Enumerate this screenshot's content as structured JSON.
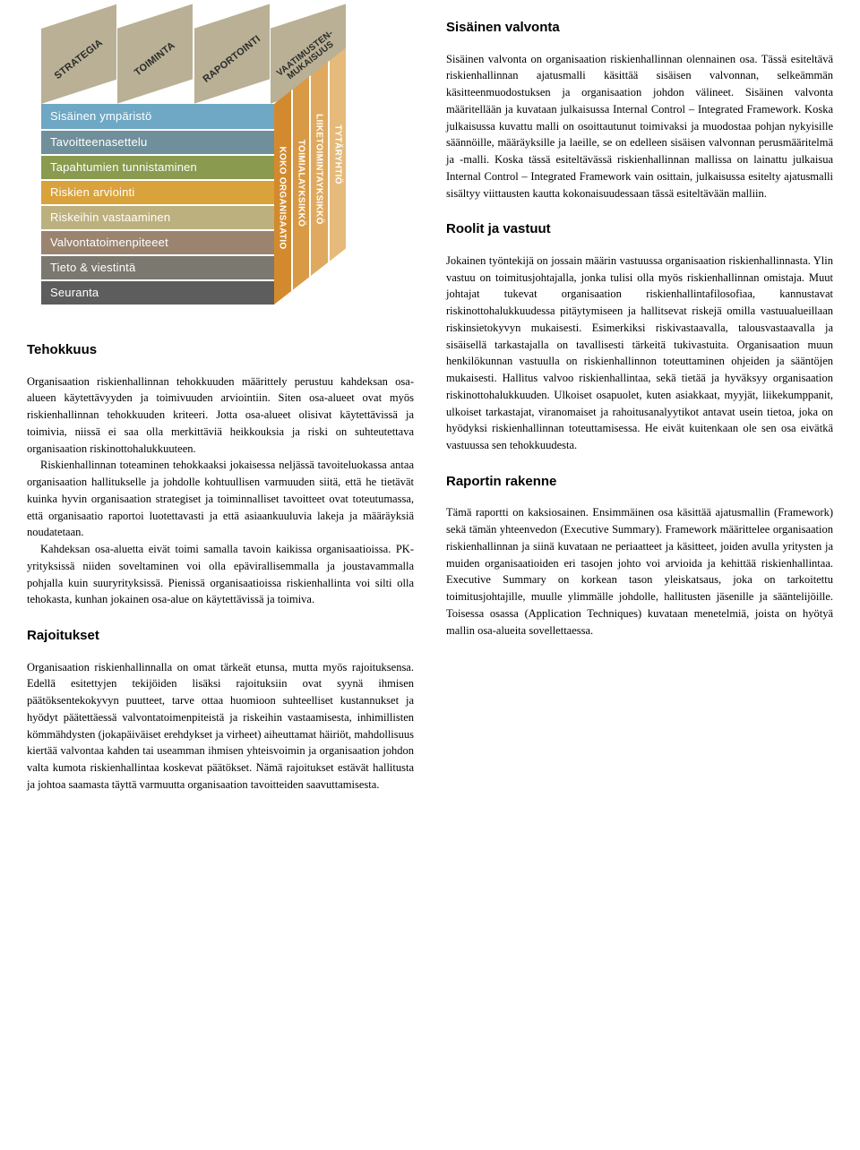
{
  "cube": {
    "top_labels": [
      "STRATEGIA",
      "TOIMINTA",
      "RAPORTOINTI",
      "VAATIMUSTEN-\nMUKAISUUS"
    ],
    "top_colors": [
      "#b9b095",
      "#b9b095",
      "#b9b095",
      "#b9b095"
    ],
    "front_rows": [
      {
        "label": "Sisäinen ympäristö",
        "color": "#6ea8c4"
      },
      {
        "label": "Tavoitteenasettelu",
        "color": "#6f8f9a"
      },
      {
        "label": "Tapahtumien tunnistaminen",
        "color": "#8a9a4e"
      },
      {
        "label": "Riskien arviointi",
        "color": "#d9a23a"
      },
      {
        "label": "Riskeihin vastaaminen",
        "color": "#bdb07f"
      },
      {
        "label": "Valvontatoimenpiteeet",
        "color": "#9a8470"
      },
      {
        "label": "Tieto & viestintä",
        "color": "#7a786f"
      },
      {
        "label": "Seuranta",
        "color": "#5d5d5d"
      }
    ],
    "side_labels": [
      "KOKO ORGANISAATIO",
      "TOIMIALAYKSIKKÖ",
      "LIIKETOIMINTAYKSIKKÖ",
      "TYTÄRYHTIÖ"
    ],
    "side_colors": [
      "#d38a2e",
      "#d99a45",
      "#dfaa5f",
      "#e5ba7a"
    ]
  },
  "left": {
    "tehokkuus_heading": "Tehokkuus",
    "tehokkuus_p1": "Organisaation riskienhallinnan tehokkuuden määrittely perustuu kahdeksan osa-alueen käytettävyyden ja toimivuuden arviointiin. Siten osa-alueet ovat myös riskienhallinnan tehokkuuden kriteeri. Jotta osa-alueet olisivat käytettävissä ja toimivia, niissä ei saa olla merkittäviä heikkouksia ja riski on suhteutettava organisaation riskinottohalukkuuteen.",
    "tehokkuus_p2": "Riskienhallinnan toteaminen tehokkaaksi jokaisessa neljässä tavoiteluokassa antaa organisaation hallitukselle ja johdolle kohtuullisen varmuuden siitä, että he tietävät kuinka hyvin organisaation strategiset ja toiminnalliset tavoitteet ovat toteutumassa, että organisaatio raportoi luotettavasti ja että asiaankuuluvia lakeja ja määräyksiä noudatetaan.",
    "tehokkuus_p3": "Kahdeksan osa-aluetta eivät toimi samalla tavoin kaikissa organisaatioissa. PK-yrityksissä niiden soveltaminen voi olla epävirallisemmalla ja joustavammalla pohjalla kuin suuryrityksissä. Pienissä organisaatioissa riskienhallinta voi silti olla tehokasta, kunhan jokainen osa-alue on käytettävissä ja toimiva.",
    "rajoitukset_heading": "Rajoitukset",
    "rajoitukset_p1": "Organisaation riskienhallinnalla on omat tärkeät etunsa, mutta myös rajoituksensa. Edellä esitettyjen tekijöiden lisäksi rajoituksiin ovat syynä ihmisen päätöksentekokyvyn puutteet, tarve ottaa huomioon suhteelliset kustannukset ja hyödyt päätettäessä valvontatoimenpiteistä ja riskeihin vastaamisesta, inhimillisten kömmähdysten (jokapäiväiset erehdykset ja virheet) aiheuttamat häiriöt, mahdollisuus kiertää valvontaa kahden tai useamman ihmisen yhteisvoimin ja organisaation johdon valta kumota riskienhallintaa koskevat päätökset. Nämä rajoitukset estävät hallitusta ja johtoa saamasta täyttä varmuutta organisaation tavoitteiden saavuttamisesta."
  },
  "right": {
    "sisainen_heading": "Sisäinen valvonta",
    "sisainen_p1": "Sisäinen valvonta on organisaation riskienhallinnan olennainen osa. Tässä esiteltävä riskienhallinnan ajatusmalli käsittää sisäisen valvonnan, selkeämmän käsitteenmuodostuksen ja organisaation johdon välineet. Sisäinen valvonta määritellään ja kuvataan julkaisussa Internal Control – Integrated Framework. Koska julkaisussa kuvattu malli on osoittautunut toimivaksi ja muodostaa pohjan nykyisille säännöille, määräyksille ja laeille, se on edelleen sisäisen valvonnan perusmääritelmä ja -malli. Koska tässä esiteltävässä riskienhallinnan mallissa on lainattu julkaisua Internal Control – Integrated Framework vain osittain, julkaisussa esitelty ajatusmalli sisältyy viittausten kautta kokonaisuudessaan tässä esiteltävään malliin.",
    "roolit_heading": "Roolit ja vastuut",
    "roolit_p1": "Jokainen työntekijä on jossain määrin vastuussa organisaation riskienhallinnasta. Ylin vastuu on toimitusjohtajalla, jonka tulisi olla myös riskienhallinnan omistaja. Muut johtajat tukevat organisaation riskienhallintafilosofiaa, kannustavat riskinottohalukkuudessa pitäytymiseen ja hallitsevat riskejä omilla vastuualueillaan riskinsietokyvyn mukaisesti. Esimerkiksi riskivastaavalla, talousvastaavalla ja sisäisellä tarkastajalla on tavallisesti tärkeitä tukivastuita. Organisaation muun henkilökunnan vastuulla on riskienhallinnon toteuttaminen ohjeiden ja sääntöjen mukaisesti. Hallitus valvoo riskienhallintaa, sekä tietää ja hyväksyy organisaation riskinottohalukkuuden. Ulkoiset osapuolet, kuten asiakkaat, myyjät, liikekumppanit, ulkoiset tarkastajat, viranomaiset ja rahoitusanalyytikot antavat usein tietoa, joka on hyödyksi riskienhallinnan toteuttamisessa. He eivät kuitenkaan ole sen osa eivätkä vastuussa sen tehokkuudesta.",
    "raportin_heading": "Raportin rakenne",
    "raportin_p1": "Tämä raportti on kaksiosainen. Ensimmäinen osa käsittää ajatusmallin (Framework) sekä tämän yhteenvedon (Executive Summary). Framework määrittelee organisaation riskienhallinnan ja siinä kuvataan ne periaatteet ja käsitteet, joiden avulla yritysten ja muiden organisaatioiden eri tasojen johto voi arvioida ja kehittää riskienhallintaa. Executive Summary on korkean tason yleiskatsaus, joka on tarkoitettu toimitusjohtajille, muulle ylimmälle johdolle, hallitusten jäsenille ja sääntelijöille. Toisessa osassa (Application Techniques) kuvataan menetelmiä, joista on hyötyä mallin osa-alueita sovellettaessa."
  }
}
